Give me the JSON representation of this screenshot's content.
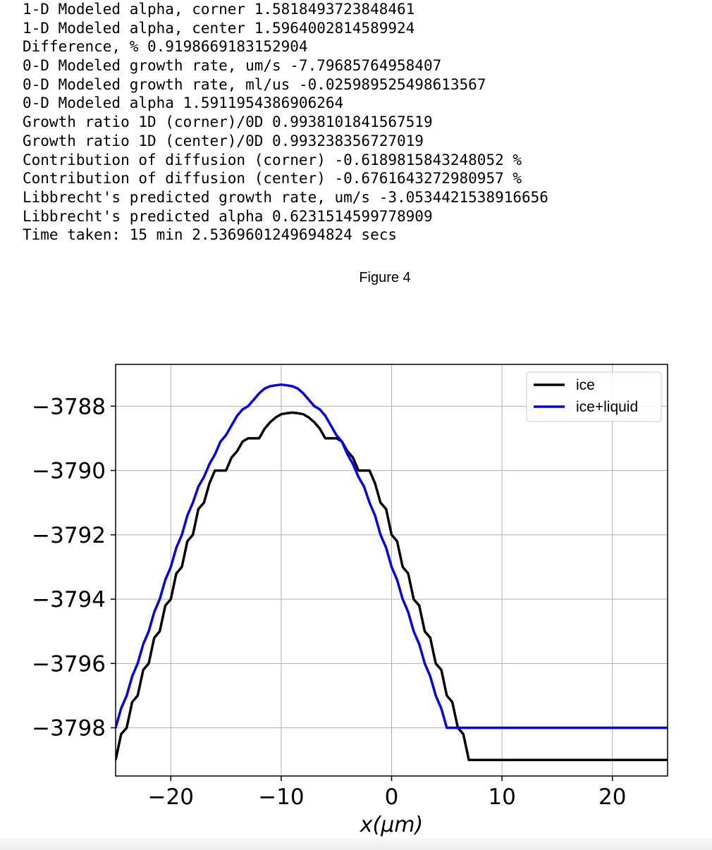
{
  "console_output": [
    "1-D Modeled alpha, corner 1.5818493723848461",
    "1-D Modeled alpha, center 1.5964002814589924",
    "Difference, % 0.9198669183152904",
    "0-D Modeled growth rate, um/s -7.79685764958407",
    "0-D Modeled growth rate, ml/us -0.025989525498613567",
    "0-D Modeled alpha 1.5911954386906264",
    "Growth ratio 1D (corner)/0D 0.9938101841567519",
    "Growth ratio 1D (center)/0D 0.993238356727019",
    "Contribution of diffusion (corner) -0.6189815843248052 %",
    "Contribution of diffusion (center) -0.6761643272980957 %",
    "Libbrecht's predicted growth rate, um/s -3.0534421538916656",
    "Libbrecht's predicted alpha 0.6231514599778909",
    "Time taken: 15 min 2.5369601249694824 secs"
  ],
  "figure": {
    "title": "Figure 4"
  },
  "chart_data": {
    "type": "line",
    "title": "",
    "xlabel": "x(μm)",
    "ylabel": "",
    "xlim": [
      -25,
      25
    ],
    "ylim": [
      -3799.5,
      -3786.7
    ],
    "xticks": [
      -20,
      -10,
      0,
      10,
      20
    ],
    "xtick_labels": [
      "−20",
      "−10",
      "0",
      "10",
      "20"
    ],
    "yticks": [
      -3788,
      -3790,
      -3792,
      -3794,
      -3796,
      -3798
    ],
    "ytick_labels": [
      "−3788",
      "−3790",
      "−3792",
      "−3794",
      "−3796",
      "−3798"
    ],
    "grid": true,
    "legend_position": "top-right",
    "x": [
      -25,
      -24.5,
      -24,
      -23.5,
      -23,
      -22.5,
      -22,
      -21.5,
      -21,
      -20.5,
      -20,
      -19.5,
      -19,
      -18.5,
      -18,
      -17.5,
      -17,
      -16.5,
      -16,
      -15.5,
      -15,
      -14.5,
      -14,
      -13.5,
      -13,
      -12.5,
      -12,
      -11.5,
      -11,
      -10.5,
      -10,
      -9.5,
      -9,
      -8.5,
      -8,
      -7.5,
      -7,
      -6.5,
      -6,
      -5.5,
      -5,
      -4.5,
      -4,
      -3.5,
      -3,
      -2.5,
      -2,
      -1.5,
      -1,
      -0.5,
      0,
      0.5,
      1,
      1.5,
      2,
      2.5,
      3,
      3.5,
      4,
      4.5,
      5,
      5.5,
      6,
      6.5,
      7,
      7.5,
      8,
      8.5,
      9,
      9.5,
      10,
      10.5,
      11,
      11.5,
      12,
      12.5,
      13,
      13.5,
      14,
      14.5,
      15,
      15.5,
      16,
      16.5,
      17,
      17.5,
      18,
      18.5,
      19,
      19.5,
      20,
      20.5,
      21,
      21.5,
      22,
      22.5,
      23,
      23.5,
      24,
      24.5,
      25
    ],
    "series": [
      {
        "name": "ice",
        "color": "#000000",
        "values": [
          -3799.0,
          -3798.2,
          -3798.0,
          -3797.2,
          -3797.0,
          -3796.2,
          -3796.0,
          -3795.2,
          -3795.0,
          -3794.2,
          -3794.0,
          -3793.2,
          -3793.0,
          -3792.2,
          -3792.0,
          -3791.2,
          -3791.0,
          -3790.4,
          -3790.0,
          -3790.0,
          -3790.0,
          -3789.6,
          -3789.4,
          -3789.1,
          -3789.0,
          -3789.0,
          -3789.0,
          -3788.7,
          -3788.5,
          -3788.35,
          -3788.25,
          -3788.22,
          -3788.2,
          -3788.22,
          -3788.25,
          -3788.35,
          -3788.5,
          -3788.7,
          -3789.0,
          -3789.0,
          -3789.0,
          -3789.1,
          -3789.4,
          -3789.6,
          -3790.0,
          -3790.0,
          -3790.0,
          -3790.4,
          -3791.0,
          -3791.2,
          -3792.0,
          -3792.2,
          -3793.0,
          -3793.2,
          -3794.0,
          -3794.2,
          -3795.0,
          -3795.2,
          -3796.0,
          -3796.2,
          -3797.0,
          -3797.2,
          -3798.0,
          -3798.2,
          -3799.0,
          -3799.0,
          -3799.0,
          -3799.0,
          -3799.0,
          -3799.0,
          -3799.0,
          -3799.0,
          -3799.0,
          -3799.0,
          -3799.0,
          -3799.0,
          -3799.0,
          -3799.0,
          -3799.0,
          -3799.0,
          -3799.0,
          -3799.0,
          -3799.0,
          -3799.0,
          -3799.0,
          -3799.0,
          -3799.0,
          -3799.0,
          -3799.0,
          -3799.0,
          -3799.0,
          -3799.0,
          -3799.0,
          -3799.0,
          -3799.0,
          -3799.0,
          -3799.0,
          -3799.0,
          -3799.0,
          -3799.0,
          -3799.0
        ]
      },
      {
        "name": "ice+liquid",
        "color": "#0000ff",
        "values": [
          -3798.0,
          -3797.4,
          -3797.0,
          -3796.4,
          -3796.0,
          -3795.4,
          -3795.0,
          -3794.4,
          -3794.0,
          -3793.4,
          -3793.0,
          -3792.4,
          -3792.0,
          -3791.4,
          -3791.0,
          -3790.5,
          -3790.2,
          -3789.8,
          -3789.5,
          -3789.1,
          -3788.9,
          -3788.6,
          -3788.3,
          -3788.1,
          -3788.0,
          -3787.8,
          -3787.6,
          -3787.45,
          -3787.38,
          -3787.35,
          -3787.33,
          -3787.35,
          -3787.38,
          -3787.45,
          -3787.6,
          -3787.8,
          -3788.0,
          -3788.1,
          -3788.3,
          -3788.6,
          -3788.9,
          -3789.1,
          -3789.5,
          -3789.8,
          -3790.2,
          -3790.5,
          -3791.0,
          -3791.4,
          -3792.0,
          -3792.4,
          -3793.0,
          -3793.4,
          -3794.0,
          -3794.4,
          -3795.0,
          -3795.4,
          -3796.0,
          -3796.4,
          -3797.0,
          -3797.4,
          -3798.0,
          -3798.0,
          -3798.0,
          -3798.0,
          -3798.0,
          -3798.0,
          -3798.0,
          -3798.0,
          -3798.0,
          -3798.0,
          -3798.0,
          -3798.0,
          -3798.0,
          -3798.0,
          -3798.0,
          -3798.0,
          -3798.0,
          -3798.0,
          -3798.0,
          -3798.0,
          -3798.0,
          -3798.0,
          -3798.0,
          -3798.0,
          -3798.0,
          -3798.0,
          -3798.0,
          -3798.0,
          -3798.0,
          -3798.0,
          -3798.0,
          -3798.0,
          -3798.0,
          -3798.0,
          -3798.0,
          -3798.0,
          -3798.0,
          -3798.0,
          -3798.0,
          -3798.0,
          -3798.0
        ]
      }
    ]
  }
}
